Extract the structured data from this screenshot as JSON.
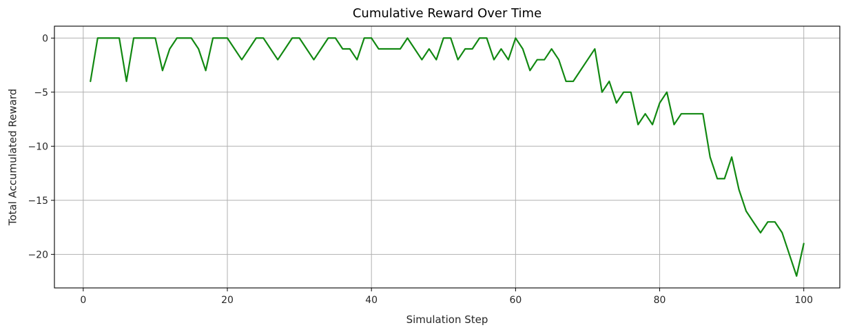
{
  "chart_data": {
    "type": "line",
    "title": "Cumulative Reward Over Time",
    "xlabel": "Simulation Step",
    "ylabel": "Total Accumulated Reward",
    "xlim": [
      -4,
      105
    ],
    "ylim": [
      -23.1,
      1.1
    ],
    "xticks": [
      0,
      20,
      40,
      60,
      80,
      100
    ],
    "yticks": [
      0,
      -5,
      -10,
      -15,
      -20
    ],
    "xtick_labels": [
      "0",
      "20",
      "40",
      "60",
      "80",
      "100"
    ],
    "ytick_labels": [
      "0",
      "−5",
      "−10",
      "−15",
      "−20"
    ],
    "grid": true,
    "line_color": "#118811",
    "series": [
      {
        "x": [
          1,
          2,
          3,
          4,
          5,
          6,
          7,
          8,
          9,
          10,
          11,
          12,
          13,
          14,
          15,
          16,
          17,
          18,
          19,
          20,
          21,
          22,
          23,
          24,
          25,
          26,
          27,
          28,
          29,
          30,
          31,
          32,
          33,
          34,
          35,
          36,
          37,
          38,
          39,
          40,
          41,
          42,
          43,
          44,
          45,
          46,
          47,
          48,
          49,
          50,
          51,
          52,
          53,
          54,
          55,
          56,
          57,
          58,
          59,
          60,
          61,
          62,
          63,
          64,
          65,
          66,
          67,
          68,
          69,
          70,
          71,
          72,
          73,
          74,
          75,
          76,
          77,
          78,
          79,
          80,
          81,
          82,
          83,
          84,
          85,
          86,
          87,
          88,
          89,
          90,
          91,
          92,
          93,
          94,
          95,
          96,
          97,
          98,
          99,
          100
        ],
        "values": [
          -4,
          0,
          0,
          0,
          0,
          -4,
          0,
          0,
          0,
          0,
          -3,
          -1,
          0,
          0,
          0,
          -1,
          -3,
          0,
          0,
          0,
          -1,
          -2,
          -1,
          0,
          0,
          -1,
          -2,
          -1,
          0,
          0,
          -1,
          -2,
          -1,
          0,
          0,
          -1,
          -1,
          -2,
          0,
          0,
          -1,
          -1,
          -1,
          -1,
          0,
          -1,
          -2,
          -1,
          -2,
          0,
          0,
          -2,
          -1,
          -1,
          0,
          0,
          -2,
          -1,
          -2,
          0,
          -1,
          -3,
          -2,
          -2,
          -1,
          -2,
          -4,
          -4,
          -3,
          -2,
          -1,
          -5,
          -4,
          -6,
          -5,
          -5,
          -8,
          -7,
          -8,
          -6,
          -5,
          -8,
          -7,
          -7,
          -7,
          -7,
          -11,
          -13,
          -13,
          -11,
          -14,
          -16,
          -17,
          -18,
          -17,
          -17,
          -18,
          -20,
          -22,
          -19
        ]
      }
    ]
  }
}
